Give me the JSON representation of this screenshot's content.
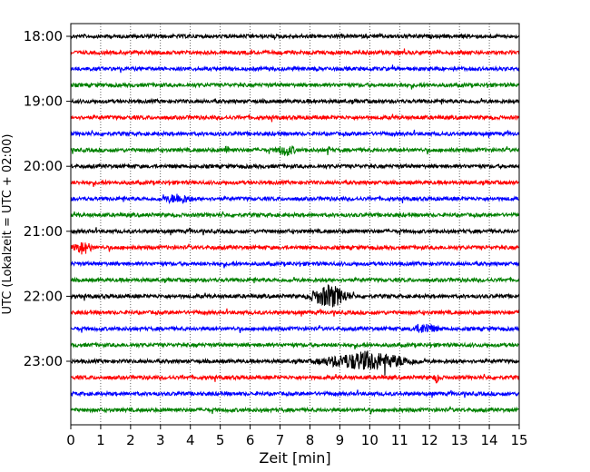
{
  "chart_data": {
    "type": "line",
    "subtype": "helicorder",
    "xlabel": "Zeit  [min]",
    "ylabel": "UTC (Lokalzeit = UTC + 02:00)",
    "xlim": [
      0,
      15
    ],
    "x_ticks": [
      "0",
      "1",
      "2",
      "3",
      "4",
      "5",
      "6",
      "7",
      "8",
      "9",
      "10",
      "11",
      "12",
      "13",
      "14",
      "15"
    ],
    "y_tick_labels": [
      "18:00",
      "19:00",
      "20:00",
      "21:00",
      "22:00",
      "23:00"
    ],
    "grid": "vertical dotted",
    "trace_colors": [
      "#000000",
      "#ff0000",
      "#0000ff",
      "#008000"
    ],
    "trace_count": 24,
    "trace_interval_min": 15,
    "events": [
      {
        "trace": 7,
        "x": [
          5.1,
          5.4
        ],
        "amp": 2.0
      },
      {
        "trace": 7,
        "x": [
          6.8,
          7.6
        ],
        "amp": 2.5
      },
      {
        "trace": 7,
        "x": [
          8.5,
          8.7
        ],
        "amp": 1.8
      },
      {
        "trace": 10,
        "x": [
          3.0,
          4.2
        ],
        "amp": 2.2
      },
      {
        "trace": 13,
        "x": [
          0.0,
          0.8
        ],
        "amp": 3.0
      },
      {
        "trace": 16,
        "x": [
          7.8,
          9.5
        ],
        "amp": 5.5
      },
      {
        "trace": 18,
        "x": [
          11.3,
          12.4
        ],
        "amp": 2.2
      },
      {
        "trace": 20,
        "x": [
          8.0,
          11.8
        ],
        "amp": 4.5
      },
      {
        "trace": 21,
        "x": [
          12.1,
          12.4
        ],
        "amp": 2.2
      }
    ]
  }
}
